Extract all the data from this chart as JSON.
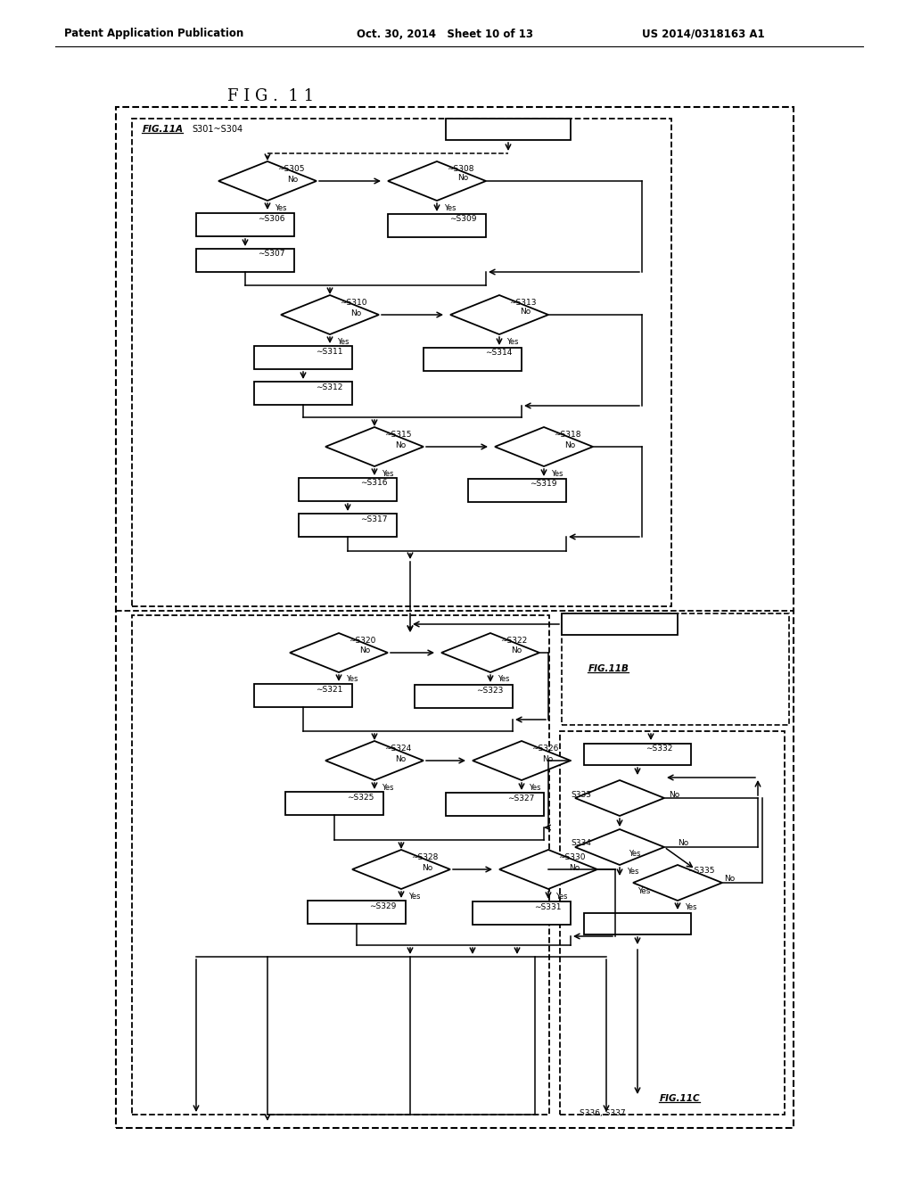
{
  "title": "F I G .  1 1",
  "header_left": "Patent Application Publication",
  "header_mid": "Oct. 30, 2014   Sheet 10 of 13",
  "header_right": "US 2014/0318163 A1",
  "bg_color": "#ffffff",
  "fig_width": 10.24,
  "fig_height": 13.2,
  "dpi": 100
}
